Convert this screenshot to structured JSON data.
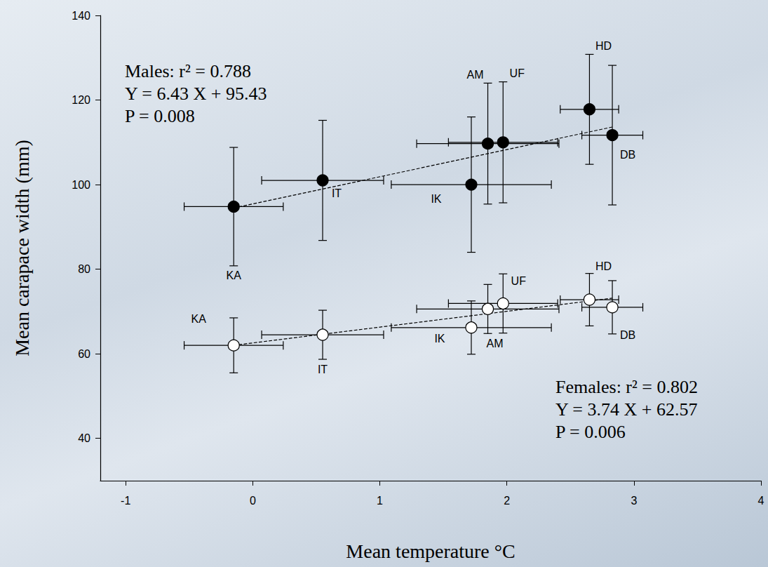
{
  "chart_data": {
    "type": "scatter",
    "xlabel": "Mean temperature °C",
    "ylabel": "Mean carapace width (mm)",
    "xlim": [
      -1.2,
      4
    ],
    "xticks": [
      -1,
      0,
      1,
      2,
      3,
      4
    ],
    "ylim": [
      30,
      140
    ],
    "yticks": [
      40,
      60,
      80,
      100,
      120,
      140
    ],
    "grid": false,
    "series": [
      {
        "color": "#000000",
        "marker": "circle",
        "line_style": "dashed",
        "labels": [
          "KA",
          "IT",
          "IK",
          "AM",
          "UF",
          "HD",
          "DB"
        ],
        "x": [
          -0.15,
          0.55,
          1.72,
          1.85,
          1.97,
          2.65,
          2.83
        ],
        "values": [
          94.8,
          101,
          100,
          109.7,
          110,
          117.8,
          111.7
        ],
        "x_err": [
          0.39,
          0.48,
          0.63,
          0.56,
          0.43,
          0.23,
          0.24
        ],
        "y_err": [
          14,
          14.2,
          16,
          14.3,
          14.3,
          13,
          16.5
        ],
        "fit": {
          "slope": 6.43,
          "intercept": 95.43
        },
        "annotation": [
          "Males: r² = 0.788",
          "Y = 6.43 X + 95.43",
          "P = 0.008"
        ]
      },
      {
        "color": "#ffffff",
        "marker": "circle",
        "line_style": "dashed",
        "labels": [
          "KA",
          "IT",
          "IK",
          "AM",
          "UF",
          "HD",
          "DB"
        ],
        "x": [
          -0.15,
          0.55,
          1.72,
          1.85,
          1.97,
          2.65,
          2.83
        ],
        "values": [
          62,
          64.5,
          66.2,
          70.6,
          71.9,
          72.8,
          71
        ],
        "x_err": [
          0.39,
          0.48,
          0.63,
          0.56,
          0.43,
          0.23,
          0.24
        ],
        "y_err": [
          6.5,
          5.8,
          6.3,
          5.8,
          7,
          6.2,
          6.3
        ],
        "fit": {
          "slope": 3.74,
          "intercept": 62.57
        },
        "annotation": [
          "Females: r² = 0.802",
          "Y = 3.74 X + 62.57",
          "P = 0.006"
        ]
      }
    ]
  }
}
